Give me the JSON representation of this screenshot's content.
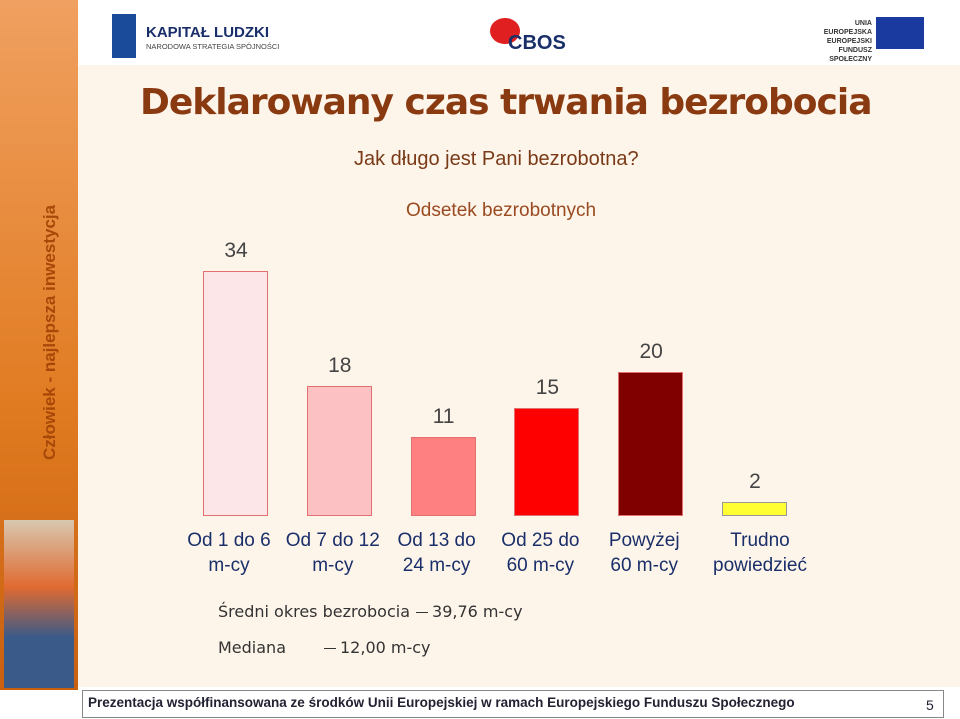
{
  "header": {
    "logo_left_title": "KAPITAŁ LUDZKI",
    "logo_left_subtitle": "NARODOWA STRATEGIA SPÓJNOŚCI",
    "logo_center": "CBOS",
    "logo_right_lines": [
      "UNIA EUROPEJSKA",
      "EUROPEJSKI",
      "FUNDUSZ SPOŁECZNY"
    ]
  },
  "sidebar": "Człowiek - najlepsza inwestycja",
  "title": "Deklarowany czas trwania bezrobocia",
  "question": "Jak długo jest Pani bezrobotna?",
  "chart_data": {
    "type": "bar",
    "title": "Odsetek bezrobotnych",
    "categories": [
      "Od 1 do 6 m-cy",
      "Od 7 do 12 m-cy",
      "Od 13 do 24 m-cy",
      "Od 25 do 60 m-cy",
      "Powyżej 60 m-cy",
      "Trudno powiedzieć"
    ],
    "values": [
      34,
      18,
      11,
      15,
      20,
      2
    ],
    "colors": [
      "#fde6e8",
      "#fbc1c3",
      "#ff8080",
      "#ff0000",
      "#800000",
      "#ffff33"
    ]
  },
  "notes": [
    {
      "label": "Średni okres bezrobocia",
      "value": "39,76 m-cy"
    },
    {
      "label": "Mediana",
      "value": "12,00 m-cy"
    }
  ],
  "footer": {
    "text": "Prezentacja współfinansowana ze środków Unii Europejskiej w ramach Europejskiego Funduszu Społecznego",
    "page": "5"
  }
}
